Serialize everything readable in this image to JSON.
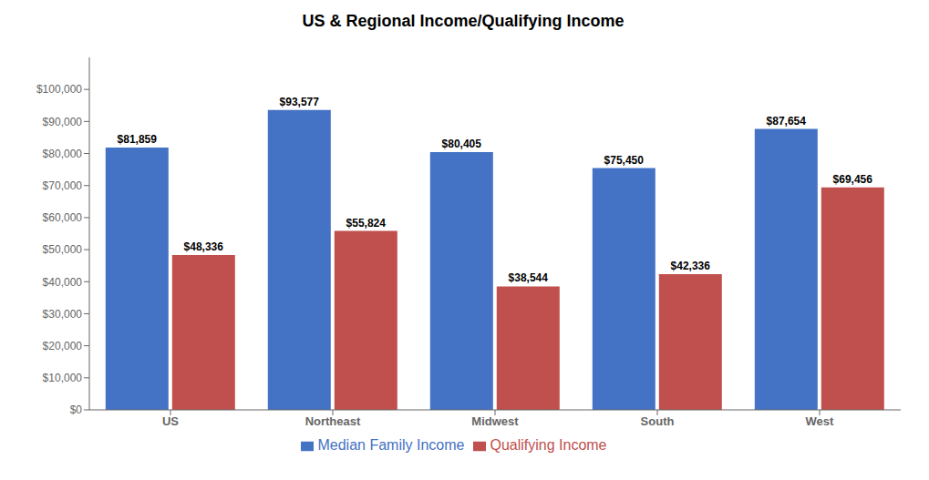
{
  "chart_data": {
    "type": "bar",
    "title": "US & Regional Income/Qualifying Income",
    "categories": [
      "US",
      "Northeast",
      "Midwest",
      "South",
      "West"
    ],
    "series": [
      {
        "name": "Median Family Income",
        "color": "#4472C4",
        "values": [
          81859,
          93577,
          80405,
          75450,
          87654
        ],
        "value_labels": [
          "$81,859",
          "$93,577",
          "$80,405",
          "$75,450",
          "$87,654"
        ]
      },
      {
        "name": "Qualifying Income",
        "color": "#C0504D",
        "values": [
          48336,
          55824,
          38544,
          42336,
          69456
        ],
        "value_labels": [
          "$48,336",
          "$55,824",
          "$38,544",
          "$42,336",
          "$69,456"
        ]
      }
    ],
    "ylim": [
      0,
      110000
    ],
    "yticks": [
      {
        "value": 0,
        "label": "$0"
      },
      {
        "value": 10000,
        "label": "$10,000"
      },
      {
        "value": 20000,
        "label": "$20,000"
      },
      {
        "value": 30000,
        "label": "$30,000"
      },
      {
        "value": 40000,
        "label": "$40,000"
      },
      {
        "value": 50000,
        "label": "$50,000"
      },
      {
        "value": 60000,
        "label": "$60,000"
      },
      {
        "value": 70000,
        "label": "$70,000"
      },
      {
        "value": 80000,
        "label": "$80,000"
      },
      {
        "value": 90000,
        "label": "$90,000"
      },
      {
        "value": 100000,
        "label": "$100,000"
      }
    ],
    "grid": false,
    "legend": "bottom",
    "data_labels": true
  }
}
